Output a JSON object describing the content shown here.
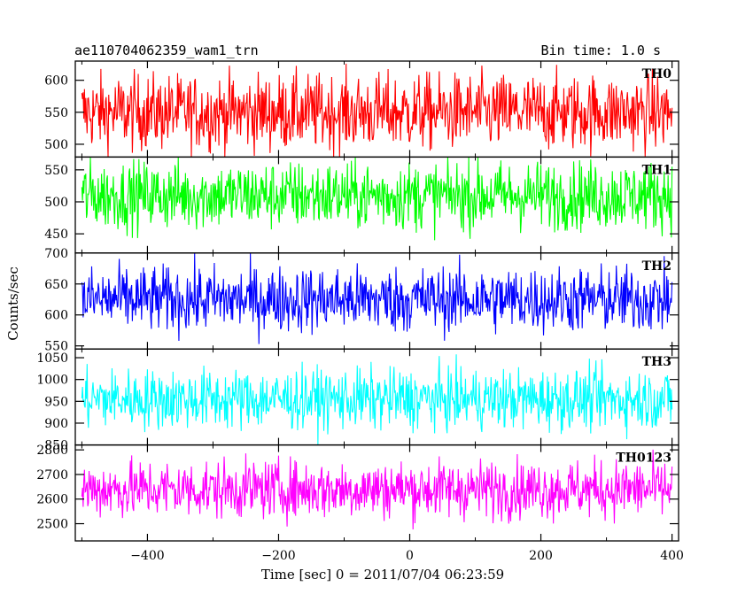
{
  "header": {
    "title": "ae110704062359_wam1_trn",
    "bin_time": "Bin time: 1.0 s"
  },
  "axes": {
    "ylabel": "Counts/sec",
    "xlabel": "Time [sec] 0 = 2011/07/04 06:23:59"
  },
  "chart_data": {
    "type": "line",
    "title": "ae110704062359_wam1_trn",
    "xlabel": "Time [sec] 0 = 2011/07/04 06:23:59",
    "ylabel": "Counts/sec",
    "xlim": [
      -510,
      410
    ],
    "x_ticks": [
      -400,
      -200,
      0,
      200,
      400
    ],
    "x_tick_labels": [
      "−400",
      "−200",
      "0",
      "200",
      "400"
    ],
    "x_range": [
      -500,
      400
    ],
    "bin_time_s": 1.0,
    "grid": false,
    "panels": [
      {
        "name": "TH0",
        "color": "#ff0000",
        "ylim": [
          480,
          630
        ],
        "y_ticks": [
          500,
          550,
          600
        ],
        "y_tick_labels": [
          "500",
          "550",
          "600"
        ],
        "mean": 550,
        "amplitude": 30
      },
      {
        "name": "TH1",
        "color": "#00ff00",
        "ylim": [
          420,
          570
        ],
        "y_ticks": [
          450,
          500,
          550
        ],
        "y_tick_labels": [
          "450",
          "500",
          "550"
        ],
        "mean": 510,
        "amplitude": 27
      },
      {
        "name": "TH2",
        "color": "#0000ff",
        "ylim": [
          545,
          700
        ],
        "y_ticks": [
          550,
          600,
          650,
          700
        ],
        "y_tick_labels": [
          "550",
          "600",
          "650",
          "700"
        ],
        "mean": 625,
        "amplitude": 27
      },
      {
        "name": "TH3",
        "color": "#00ffff",
        "ylim": [
          850,
          1070
        ],
        "y_ticks": [
          850,
          900,
          950,
          1000,
          1050
        ],
        "y_tick_labels": [
          "850",
          "900",
          "950",
          "1000",
          "1050"
        ],
        "mean": 955,
        "amplitude": 35
      },
      {
        "name": "TH0123",
        "color": "#ff00ff",
        "ylim": [
          2430,
          2820
        ],
        "y_ticks": [
          2500,
          2600,
          2700,
          2800
        ],
        "y_tick_labels": [
          "2500",
          "2600",
          "2700",
          "2800"
        ],
        "mean": 2640,
        "amplitude": 60
      }
    ]
  }
}
